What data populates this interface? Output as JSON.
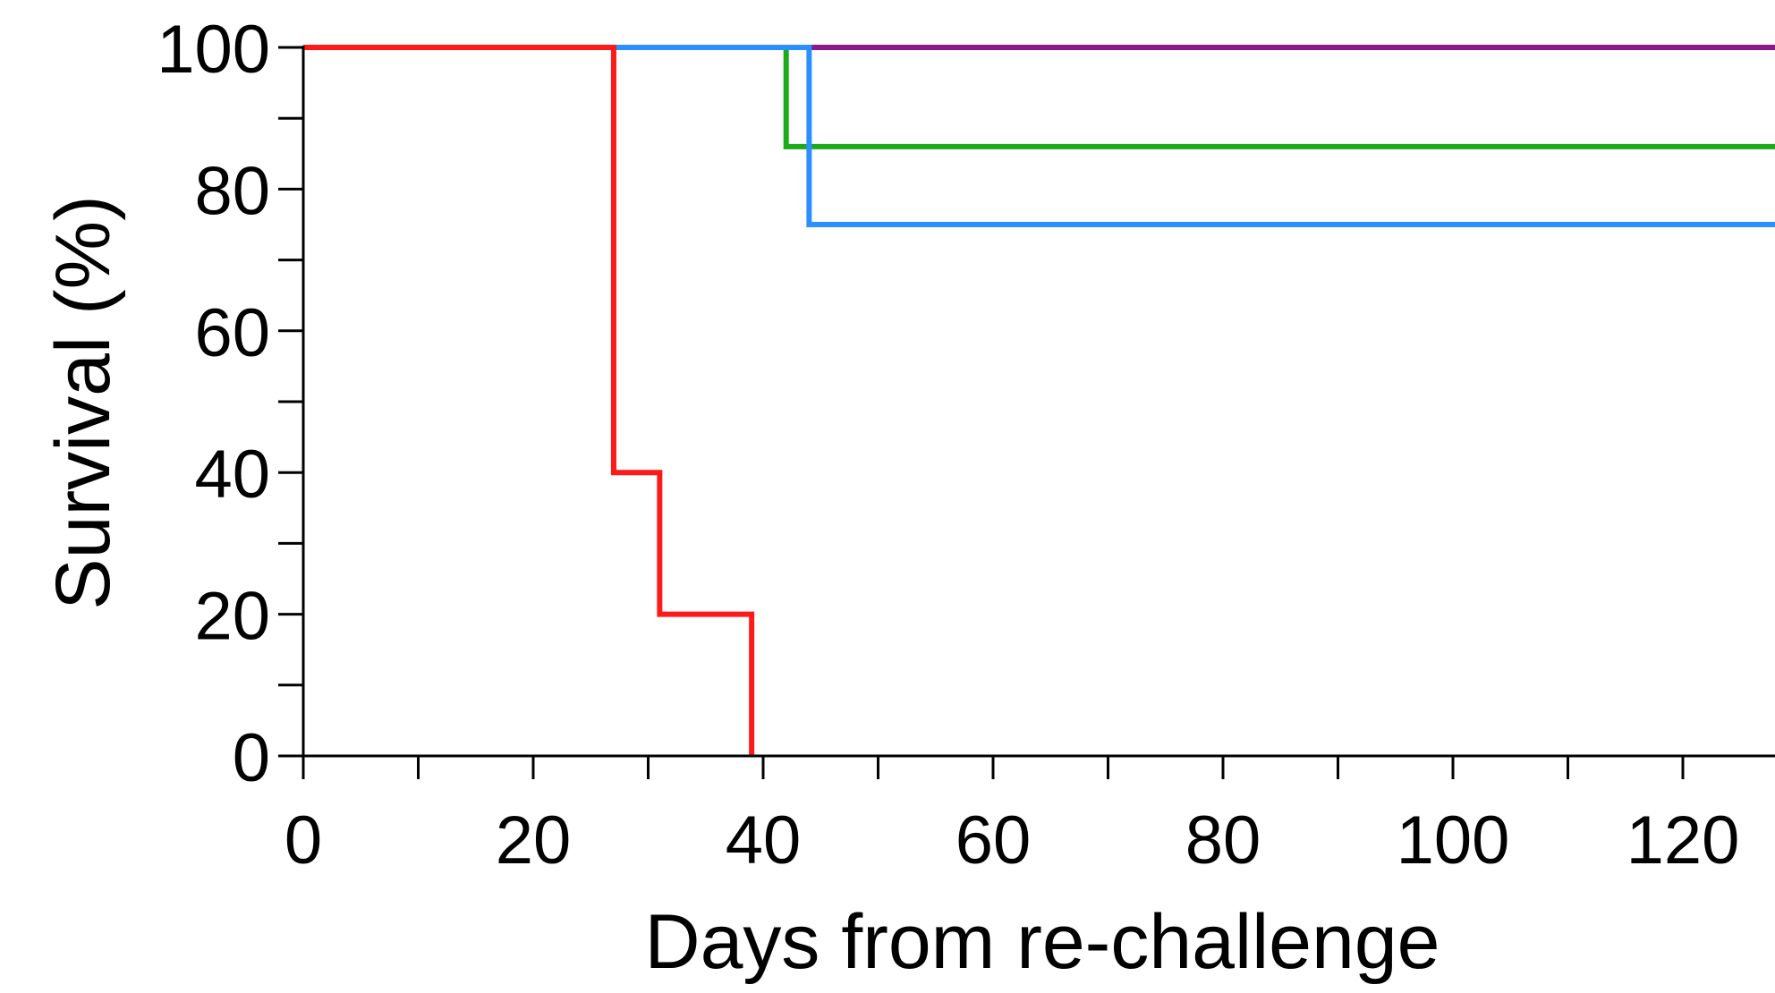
{
  "chart_data": {
    "type": "line",
    "step": true,
    "title": "",
    "xlabel": "Days from re-challenge",
    "ylabel": "Survival (%)",
    "xlim": [
      0,
      130
    ],
    "ylim": [
      0,
      100
    ],
    "x_ticks_major": [
      0,
      20,
      40,
      60,
      80,
      100,
      120
    ],
    "x_ticks_minor": [
      10,
      30,
      50,
      70,
      90,
      110,
      130
    ],
    "y_ticks_major": [
      0,
      20,
      40,
      60,
      80,
      100
    ],
    "y_ticks_minor": [
      10,
      30,
      50,
      70,
      90
    ],
    "x_tick_labels": [
      "0",
      "20",
      "40",
      "60",
      "80",
      "100",
      "120"
    ],
    "y_tick_labels": [
      "0",
      "20",
      "40",
      "60",
      "80",
      "100"
    ],
    "grid": false,
    "series": [
      {
        "color": "#8B1A89",
        "x": [
          0,
          130
        ],
        "y": [
          100,
          100
        ]
      },
      {
        "color": "#1AAA1A",
        "x": [
          0,
          42,
          130
        ],
        "y": [
          100,
          86,
          86
        ]
      },
      {
        "color": "#2A8FFF",
        "x": [
          0,
          44,
          130
        ],
        "y": [
          100,
          75,
          75
        ]
      },
      {
        "color": "#FF1A1A",
        "x": [
          0,
          27,
          31,
          39
        ],
        "y": [
          100,
          40,
          20,
          0
        ]
      }
    ]
  }
}
